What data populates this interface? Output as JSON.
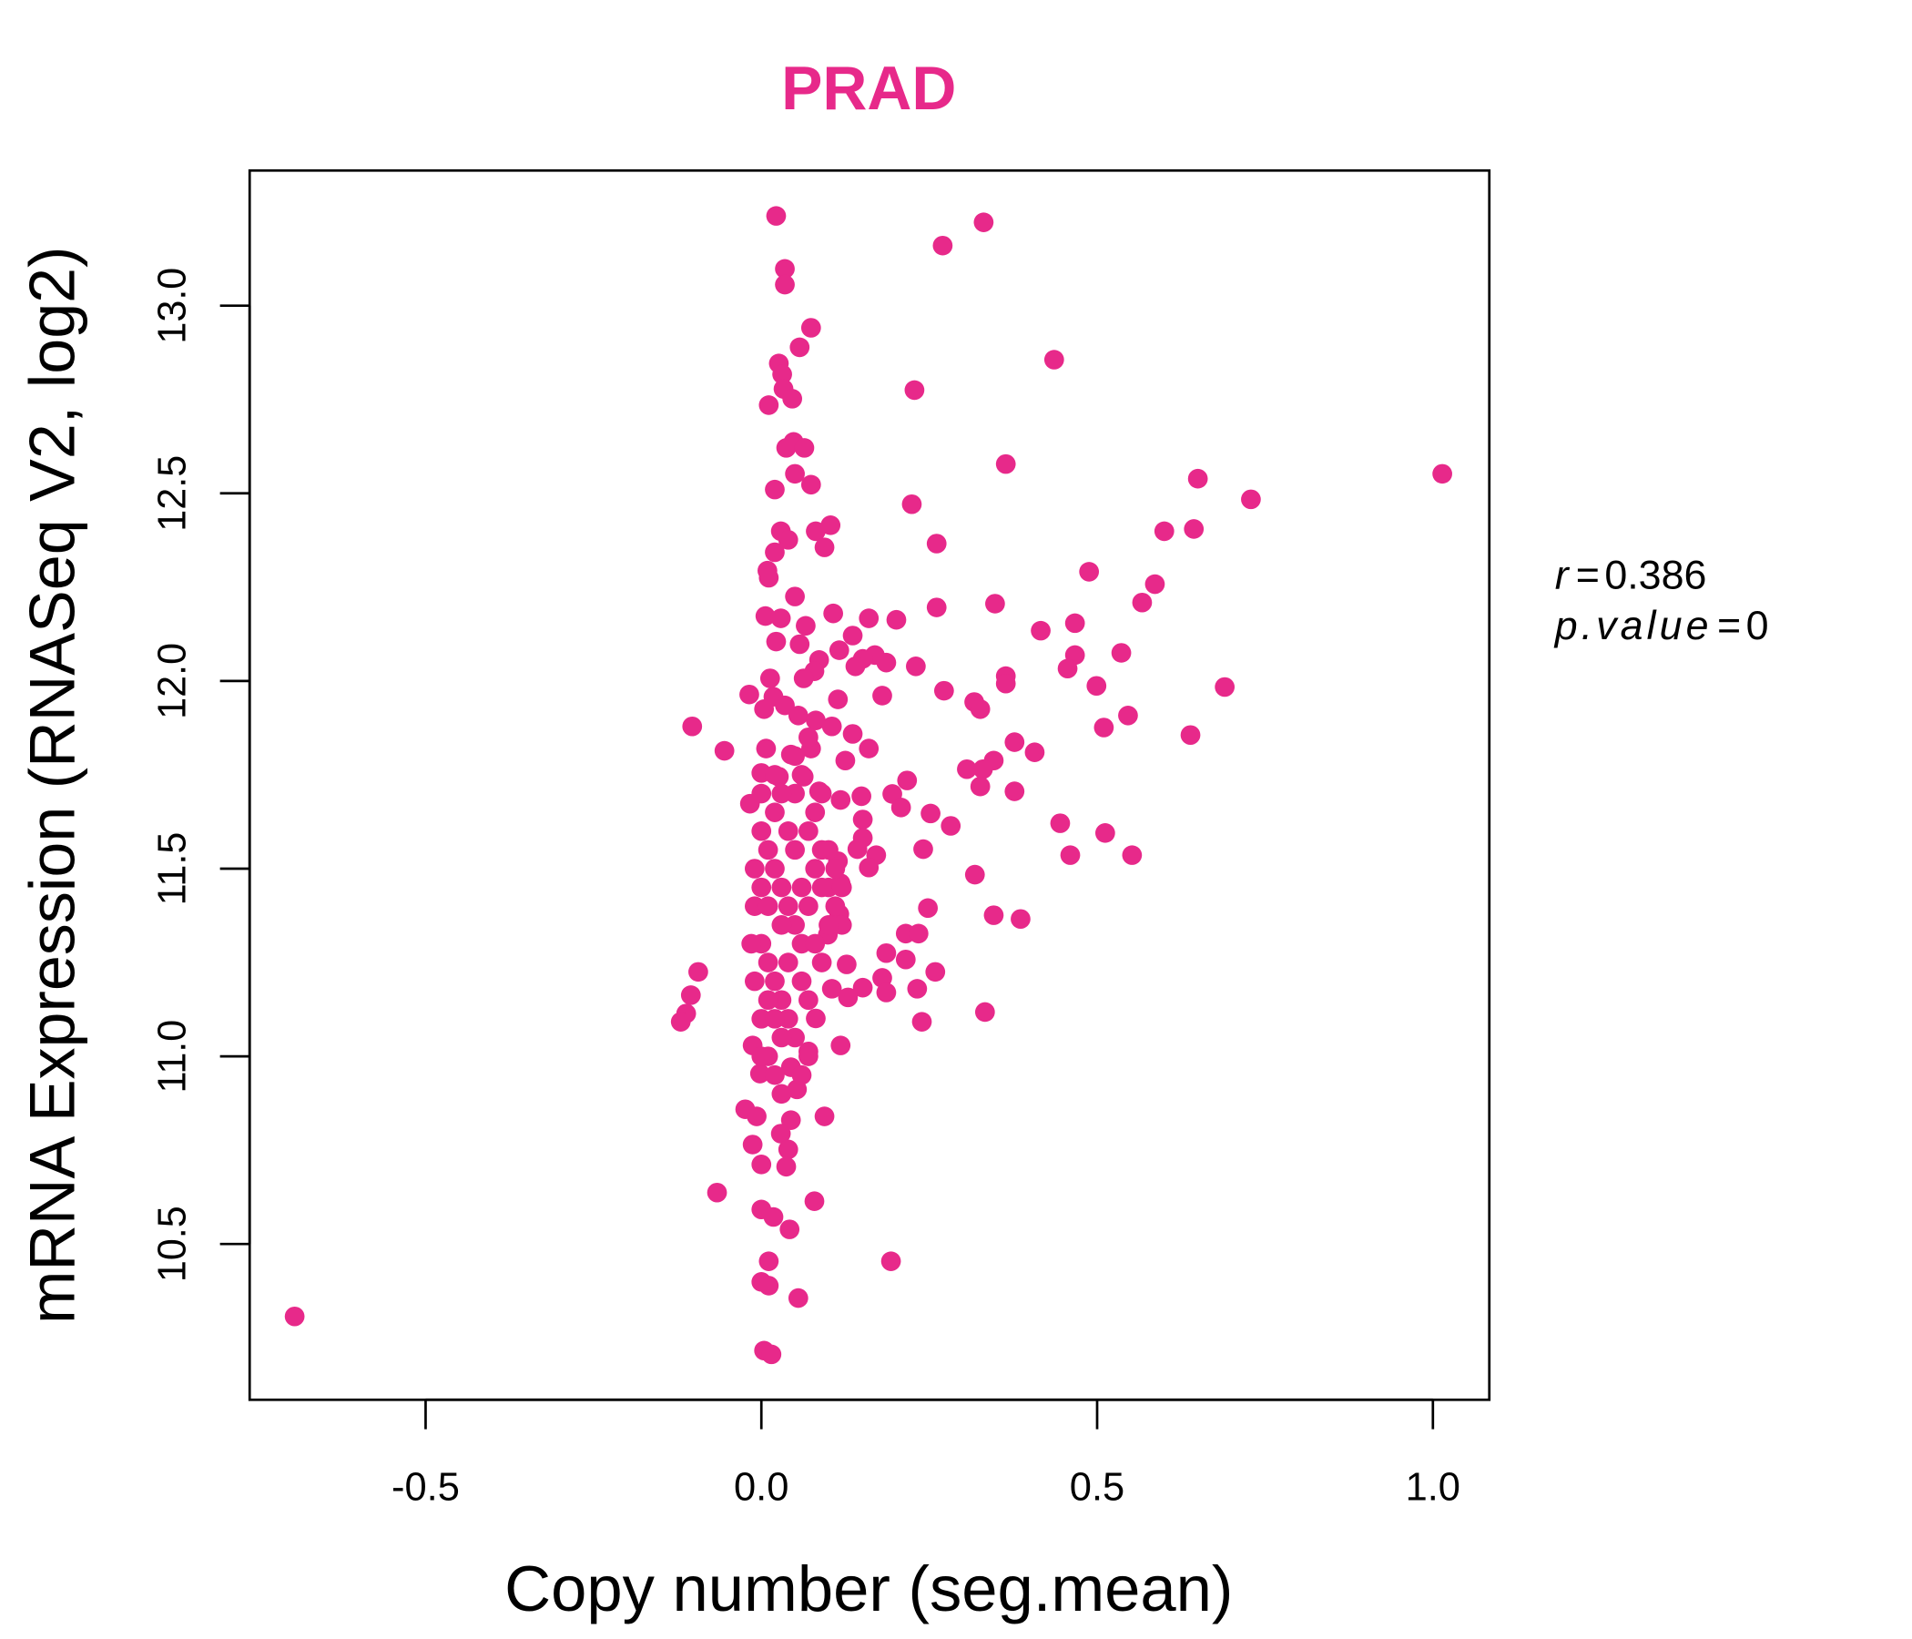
{
  "chart_data": {
    "type": "scatter",
    "title": "PRAD",
    "xlabel": "Copy number (seg.mean)",
    "ylabel": "mRNA Expression (RNASeq V2, log2)",
    "xlim": [
      -0.762,
      1.084
    ],
    "ylim": [
      10.085,
      13.36
    ],
    "xticks": [
      -0.5,
      0.0,
      0.5,
      1.0
    ],
    "xtick_labels": [
      "-0.5",
      "0.0",
      "0.5",
      "1.0"
    ],
    "yticks": [
      10.5,
      11.0,
      11.5,
      12.0,
      12.5,
      13.0
    ],
    "ytick_labels": [
      "10.5",
      "11.0",
      "11.5",
      "12.0",
      "12.5",
      "13.0"
    ],
    "grid": false,
    "color": "#E7298A",
    "annotation": {
      "r_label": "r",
      "r_value": "0.386",
      "p_label": "p.value",
      "p_value": "0",
      "eq": "="
    },
    "points": [
      [
        -0.695,
        10.307
      ],
      [
        0.022,
        13.239
      ],
      [
        0.331,
        13.222
      ],
      [
        0.27,
        13.16
      ],
      [
        0.035,
        13.098
      ],
      [
        0.035,
        13.056
      ],
      [
        0.074,
        12.941
      ],
      [
        0.057,
        12.889
      ],
      [
        0.026,
        12.846
      ],
      [
        0.436,
        12.856
      ],
      [
        0.031,
        12.817
      ],
      [
        0.033,
        12.778
      ],
      [
        0.046,
        12.752
      ],
      [
        0.011,
        12.735
      ],
      [
        0.228,
        12.775
      ],
      [
        0.037,
        12.621
      ],
      [
        0.048,
        12.637
      ],
      [
        0.064,
        12.621
      ],
      [
        0.364,
        12.578
      ],
      [
        0.05,
        12.552
      ],
      [
        0.074,
        12.523
      ],
      [
        0.02,
        12.51
      ],
      [
        0.65,
        12.539
      ],
      [
        1.014,
        12.552
      ],
      [
        0.729,
        12.484
      ],
      [
        0.224,
        12.471
      ],
      [
        0.6,
        12.399
      ],
      [
        0.644,
        12.405
      ],
      [
        0.029,
        12.399
      ],
      [
        0.081,
        12.399
      ],
      [
        0.103,
        12.415
      ],
      [
        0.04,
        12.376
      ],
      [
        0.02,
        12.343
      ],
      [
        0.094,
        12.356
      ],
      [
        0.261,
        12.366
      ],
      [
        0.009,
        12.294
      ],
      [
        0.488,
        12.291
      ],
      [
        0.586,
        12.258
      ],
      [
        0.011,
        12.275
      ],
      [
        0.05,
        12.225
      ],
      [
        0.567,
        12.209
      ],
      [
        0.348,
        12.206
      ],
      [
        0.261,
        12.196
      ],
      [
        0.006,
        12.173
      ],
      [
        0.029,
        12.167
      ],
      [
        0.107,
        12.18
      ],
      [
        0.16,
        12.167
      ],
      [
        0.201,
        12.163
      ],
      [
        0.467,
        12.154
      ],
      [
        0.416,
        12.134
      ],
      [
        0.066,
        12.147
      ],
      [
        0.022,
        12.105
      ],
      [
        0.136,
        12.121
      ],
      [
        0.057,
        12.098
      ],
      [
        0.116,
        12.082
      ],
      [
        0.536,
        12.075
      ],
      [
        0.467,
        12.069
      ],
      [
        0.169,
        12.069
      ],
      [
        0.151,
        12.059
      ],
      [
        0.086,
        12.056
      ],
      [
        0.186,
        12.049
      ],
      [
        0.23,
        12.039
      ],
      [
        0.14,
        12.039
      ],
      [
        0.456,
        12.033
      ],
      [
        0.079,
        12.026
      ],
      [
        0.063,
        12.007
      ],
      [
        0.013,
        12.007
      ],
      [
        0.364,
        12.013
      ],
      [
        0.364,
        11.993
      ],
      [
        0.499,
        11.987
      ],
      [
        0.69,
        11.984
      ],
      [
        0.272,
        11.974
      ],
      [
        -0.018,
        11.964
      ],
      [
        0.018,
        11.958
      ],
      [
        0.114,
        11.951
      ],
      [
        0.18,
        11.961
      ],
      [
        0.317,
        11.944
      ],
      [
        0.326,
        11.925
      ],
      [
        0.035,
        11.935
      ],
      [
        0.004,
        11.925
      ],
      [
        0.055,
        11.908
      ],
      [
        0.081,
        11.895
      ],
      [
        0.546,
        11.908
      ],
      [
        -0.103,
        11.879
      ],
      [
        0.51,
        11.876
      ],
      [
        0.105,
        11.879
      ],
      [
        0.639,
        11.856
      ],
      [
        0.136,
        11.859
      ],
      [
        0.377,
        11.837
      ],
      [
        -0.055,
        11.814
      ],
      [
        0.16,
        11.82
      ],
      [
        0.407,
        11.81
      ],
      [
        0.007,
        11.82
      ],
      [
        0.044,
        11.804
      ],
      [
        0.074,
        11.82
      ],
      [
        0.346,
        11.788
      ],
      [
        0.125,
        11.788
      ],
      [
        0.306,
        11.765
      ],
      [
        0.33,
        11.765
      ],
      [
        0.0,
        11.755
      ],
      [
        0.026,
        11.745
      ],
      [
        0.063,
        11.745
      ],
      [
        0.217,
        11.735
      ],
      [
        0.326,
        11.719
      ],
      [
        0.377,
        11.706
      ],
      [
        0.086,
        11.706
      ],
      [
        0.195,
        11.699
      ],
      [
        0.149,
        11.693
      ],
      [
        -0.017,
        11.673
      ],
      [
        0.118,
        11.683
      ],
      [
        0.208,
        11.663
      ],
      [
        0.252,
        11.647
      ],
      [
        0.151,
        11.631
      ],
      [
        0.282,
        11.614
      ],
      [
        0.445,
        11.621
      ],
      [
        0.512,
        11.595
      ],
      [
        0.151,
        11.582
      ],
      [
        0.241,
        11.552
      ],
      [
        0.143,
        11.552
      ],
      [
        0.46,
        11.536
      ],
      [
        0.552,
        11.536
      ],
      [
        0.171,
        11.536
      ],
      [
        0.16,
        11.503
      ],
      [
        0.318,
        11.484
      ],
      [
        0.114,
        11.52
      ],
      [
        0.118,
        11.461
      ],
      [
        0.248,
        11.395
      ],
      [
        0.346,
        11.376
      ],
      [
        0.386,
        11.366
      ],
      [
        0.116,
        11.379
      ],
      [
        0.215,
        11.327
      ],
      [
        0.234,
        11.327
      ],
      [
        0.099,
        11.324
      ],
      [
        0.186,
        11.275
      ],
      [
        0.215,
        11.258
      ],
      [
        -0.094,
        11.225
      ],
      [
        0.259,
        11.225
      ],
      [
        0.127,
        11.245
      ],
      [
        0.18,
        11.209
      ],
      [
        0.151,
        11.183
      ],
      [
        -0.105,
        11.163
      ],
      [
        0.232,
        11.18
      ],
      [
        0.105,
        11.18
      ],
      [
        0.129,
        11.157
      ],
      [
        0.186,
        11.17
      ],
      [
        -0.112,
        11.114
      ],
      [
        -0.12,
        11.092
      ],
      [
        0.333,
        11.118
      ],
      [
        0.239,
        11.092
      ],
      [
        0.081,
        11.101
      ],
      [
        0.118,
        11.029
      ],
      [
        0.07,
        11.013
      ],
      [
        -0.013,
        11.029
      ],
      [
        0.044,
        10.971
      ],
      [
        -0.002,
        10.954
      ],
      [
        0.053,
        10.912
      ],
      [
        0.094,
        10.84
      ],
      [
        -0.024,
        10.859
      ],
      [
        -0.007,
        10.84
      ],
      [
        0.044,
        10.83
      ],
      [
        0.029,
        10.794
      ],
      [
        -0.013,
        10.765
      ],
      [
        0.04,
        10.752
      ],
      [
        0.0,
        10.712
      ],
      [
        0.037,
        10.706
      ],
      [
        -0.066,
        10.637
      ],
      [
        0.079,
        10.614
      ],
      [
        0.0,
        10.592
      ],
      [
        0.018,
        10.572
      ],
      [
        0.042,
        10.539
      ],
      [
        0.011,
        10.454
      ],
      [
        0.193,
        10.454
      ],
      [
        0.0,
        10.399
      ],
      [
        0.011,
        10.389
      ],
      [
        0.055,
        10.356
      ],
      [
        0.004,
        10.216
      ],
      [
        0.015,
        10.206
      ],
      [
        0.0,
        11.6
      ],
      [
        0.01,
        11.55
      ],
      [
        0.02,
        11.5
      ],
      [
        0.03,
        11.45
      ],
      [
        0.04,
        11.4
      ],
      [
        0.05,
        11.35
      ],
      [
        0.06,
        11.3
      ],
      [
        0.0,
        11.3
      ],
      [
        0.01,
        11.25
      ],
      [
        0.02,
        11.2
      ],
      [
        0.03,
        11.15
      ],
      [
        0.04,
        11.1
      ],
      [
        0.05,
        11.05
      ],
      [
        0.0,
        11.1
      ],
      [
        0.01,
        11.0
      ],
      [
        0.02,
        10.95
      ],
      [
        0.03,
        10.9
      ],
      [
        0.06,
        11.2
      ],
      [
        0.07,
        11.4
      ],
      [
        0.08,
        11.5
      ],
      [
        0.09,
        11.55
      ],
      [
        0.1,
        11.45
      ],
      [
        0.11,
        11.4
      ],
      [
        0.12,
        11.35
      ],
      [
        0.07,
        11.6
      ],
      [
        0.08,
        11.65
      ],
      [
        0.05,
        11.7
      ],
      [
        0.06,
        11.75
      ],
      [
        0.03,
        11.7
      ],
      [
        0.02,
        11.75
      ],
      [
        -0.01,
        11.5
      ],
      [
        -0.01,
        11.4
      ],
      [
        -0.015,
        11.3
      ],
      [
        -0.01,
        11.2
      ],
      [
        0.0,
        11.45
      ],
      [
        0.0,
        11.0
      ],
      [
        0.02,
        11.1
      ],
      [
        0.04,
        11.25
      ],
      [
        0.06,
        11.45
      ],
      [
        0.08,
        11.3
      ],
      [
        0.1,
        11.35
      ],
      [
        0.09,
        11.25
      ],
      [
        0.07,
        11.15
      ],
      [
        0.05,
        11.55
      ],
      [
        0.04,
        11.6
      ],
      [
        0.03,
        11.35
      ],
      [
        0.01,
        11.4
      ],
      [
        0.02,
        11.65
      ],
      [
        0.07,
        11.0
      ],
      [
        0.06,
        10.95
      ],
      [
        0.03,
        11.05
      ],
      [
        0.01,
        11.15
      ],
      [
        0.09,
        11.45
      ],
      [
        0.1,
        11.55
      ],
      [
        0.12,
        11.45
      ],
      [
        0.11,
        11.5
      ],
      [
        0.0,
        11.7
      ],
      [
        0.05,
        11.8
      ],
      [
        0.07,
        11.85
      ],
      [
        0.09,
        11.7
      ]
    ]
  }
}
